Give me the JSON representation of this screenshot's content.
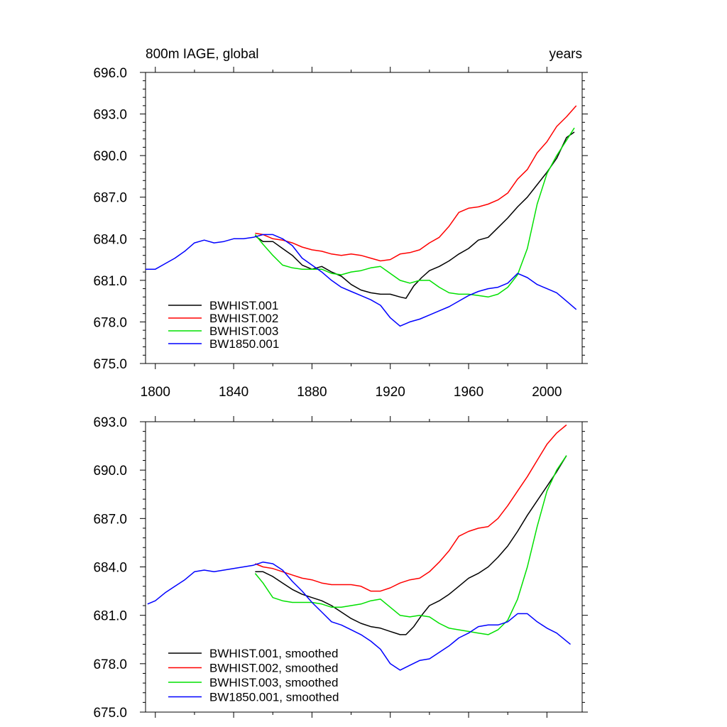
{
  "colors": {
    "BWHIST.001": "#000000",
    "BWHIST.002": "#ff0000",
    "BWHIST.003": "#00e000",
    "BW1850.001": "#0000ff"
  },
  "chart_data": [
    {
      "type": "line",
      "title_left": "800m IAGE, global",
      "title_right": "years",
      "xlim": [
        1795,
        2018
      ],
      "ylim": [
        675.0,
        696.0
      ],
      "x_ticks": [
        1800,
        1840,
        1880,
        1920,
        1960,
        2000
      ],
      "x_tick_labels": [
        "1800",
        "1840",
        "1880",
        "1920",
        "1960",
        "2000"
      ],
      "y_ticks": [
        675,
        678,
        681,
        684,
        687,
        690,
        693,
        696
      ],
      "y_tick_labels": [
        "675.0",
        "678.0",
        "681.0",
        "684.0",
        "687.0",
        "690.0",
        "693.0",
        "696.0"
      ],
      "legend_position": "lower-left",
      "series": [
        {
          "name": "BWHIST.001",
          "color_key": "BWHIST.001",
          "x": [
            1851,
            1855,
            1860,
            1865,
            1870,
            1875,
            1880,
            1885,
            1890,
            1895,
            1900,
            1905,
            1910,
            1915,
            1920,
            1925,
            1928,
            1932,
            1936,
            1940,
            1945,
            1950,
            1955,
            1960,
            1965,
            1970,
            1975,
            1980,
            1985,
            1990,
            1995,
            2000,
            2005,
            2010,
            2014
          ],
          "y": [
            684.2,
            683.8,
            683.8,
            683.3,
            682.8,
            682.1,
            681.8,
            682.0,
            681.6,
            681.3,
            680.7,
            680.3,
            680.1,
            680.0,
            680.0,
            679.8,
            679.7,
            680.6,
            681.2,
            681.7,
            682.0,
            682.4,
            682.9,
            683.3,
            683.9,
            684.1,
            684.8,
            685.5,
            686.3,
            687.0,
            687.9,
            688.8,
            689.8,
            691.3,
            691.7
          ]
        },
        {
          "name": "BWHIST.002",
          "color_key": "BWHIST.002",
          "x": [
            1851,
            1855,
            1860,
            1865,
            1870,
            1875,
            1880,
            1885,
            1890,
            1895,
            1900,
            1905,
            1910,
            1915,
            1920,
            1925,
            1930,
            1935,
            1940,
            1945,
            1950,
            1955,
            1960,
            1965,
            1970,
            1975,
            1980,
            1985,
            1990,
            1995,
            2000,
            2005,
            2010,
            2015
          ],
          "y": [
            684.4,
            684.3,
            684.0,
            683.9,
            683.7,
            683.4,
            683.2,
            683.1,
            682.9,
            682.8,
            682.9,
            682.8,
            682.6,
            682.4,
            682.5,
            682.9,
            683.0,
            683.2,
            683.7,
            684.1,
            684.9,
            685.9,
            686.2,
            686.3,
            686.5,
            686.8,
            687.3,
            688.3,
            689.0,
            690.2,
            691.0,
            692.1,
            692.8,
            693.6
          ]
        },
        {
          "name": "BWHIST.003",
          "color_key": "BWHIST.003",
          "x": [
            1851,
            1855,
            1860,
            1865,
            1870,
            1875,
            1880,
            1885,
            1890,
            1895,
            1900,
            1905,
            1910,
            1915,
            1920,
            1925,
            1930,
            1935,
            1940,
            1945,
            1950,
            1955,
            1960,
            1965,
            1970,
            1975,
            1980,
            1985,
            1990,
            1995,
            2000,
            2005,
            2010,
            2014
          ],
          "y": [
            684.3,
            683.6,
            682.8,
            682.1,
            681.9,
            681.8,
            681.8,
            681.8,
            681.5,
            681.4,
            681.6,
            681.7,
            681.9,
            682.0,
            681.5,
            681.0,
            680.8,
            681.0,
            681.0,
            680.5,
            680.1,
            680.0,
            680.0,
            679.9,
            679.8,
            680.0,
            680.5,
            681.4,
            683.3,
            686.5,
            688.7,
            690.0,
            691.1,
            692.0
          ]
        },
        {
          "name": "BW1850.001",
          "color_key": "BW1850.001",
          "x": [
            1795,
            1800,
            1805,
            1810,
            1815,
            1820,
            1825,
            1830,
            1835,
            1840,
            1845,
            1850,
            1855,
            1860,
            1865,
            1870,
            1875,
            1880,
            1885,
            1890,
            1895,
            1900,
            1905,
            1910,
            1915,
            1920,
            1925,
            1930,
            1935,
            1940,
            1945,
            1950,
            1955,
            1960,
            1965,
            1970,
            1975,
            1980,
            1985,
            1990,
            1995,
            2000,
            2005,
            2010,
            2015
          ],
          "y": [
            681.8,
            681.8,
            682.2,
            682.6,
            683.1,
            683.7,
            683.9,
            683.7,
            683.8,
            684.0,
            684.0,
            684.1,
            684.3,
            684.3,
            684.0,
            683.5,
            682.6,
            682.1,
            681.6,
            681.0,
            680.5,
            680.2,
            679.9,
            679.6,
            679.2,
            678.3,
            677.7,
            678.0,
            678.2,
            678.5,
            678.8,
            679.1,
            679.5,
            679.9,
            680.2,
            680.4,
            680.5,
            680.8,
            681.5,
            681.2,
            680.7,
            680.4,
            680.1,
            679.5,
            678.9
          ]
        }
      ]
    },
    {
      "type": "line",
      "xlim": [
        1795,
        2018
      ],
      "ylim": [
        675.0,
        693.0
      ],
      "x_ticks": [
        1800,
        1840,
        1880,
        1920,
        1960,
        2000
      ],
      "y_ticks": [
        675,
        678,
        681,
        684,
        687,
        690,
        693
      ],
      "y_tick_labels": [
        "675.0",
        "678.0",
        "681.0",
        "684.0",
        "687.0",
        "690.0",
        "693.0"
      ],
      "legend_position": "lower-left",
      "series": [
        {
          "name": "BWHIST.001, smoothed",
          "color_key": "BWHIST.001",
          "x": [
            1851,
            1855,
            1860,
            1865,
            1870,
            1875,
            1880,
            1885,
            1890,
            1895,
            1900,
            1905,
            1910,
            1915,
            1920,
            1925,
            1928,
            1932,
            1936,
            1940,
            1945,
            1950,
            1955,
            1960,
            1965,
            1970,
            1975,
            1980,
            1985,
            1990,
            1995,
            2000,
            2005,
            2010
          ],
          "y": [
            683.7,
            683.7,
            683.4,
            683.0,
            682.6,
            682.3,
            682.1,
            681.9,
            681.6,
            681.2,
            680.8,
            680.5,
            680.3,
            680.2,
            680.0,
            679.8,
            679.8,
            680.3,
            681.0,
            681.6,
            681.9,
            682.3,
            682.8,
            683.3,
            683.6,
            684.0,
            684.6,
            685.3,
            686.2,
            687.2,
            688.1,
            689.0,
            689.9,
            690.9
          ]
        },
        {
          "name": "BWHIST.002, smoothed",
          "color_key": "BWHIST.002",
          "x": [
            1851,
            1855,
            1860,
            1865,
            1870,
            1875,
            1880,
            1885,
            1890,
            1895,
            1900,
            1905,
            1910,
            1915,
            1920,
            1925,
            1930,
            1935,
            1940,
            1945,
            1950,
            1955,
            1960,
            1965,
            1970,
            1975,
            1980,
            1985,
            1990,
            1995,
            2000,
            2005,
            2010
          ],
          "y": [
            684.2,
            684.0,
            683.9,
            683.7,
            683.5,
            683.3,
            683.2,
            683.0,
            682.9,
            682.9,
            682.9,
            682.8,
            682.5,
            682.5,
            682.7,
            683.0,
            683.2,
            683.3,
            683.7,
            684.3,
            685.0,
            685.9,
            686.2,
            686.4,
            686.5,
            687.0,
            687.8,
            688.7,
            689.6,
            690.6,
            691.6,
            692.3,
            692.8
          ]
        },
        {
          "name": "BWHIST.003, smoothed",
          "color_key": "BWHIST.003",
          "x": [
            1851,
            1855,
            1860,
            1865,
            1870,
            1875,
            1880,
            1885,
            1890,
            1895,
            1900,
            1905,
            1910,
            1915,
            1920,
            1925,
            1930,
            1935,
            1940,
            1945,
            1950,
            1955,
            1960,
            1965,
            1970,
            1975,
            1980,
            1985,
            1990,
            1995,
            2000,
            2005,
            2010
          ],
          "y": [
            683.6,
            683.0,
            682.1,
            681.9,
            681.8,
            681.8,
            681.8,
            681.7,
            681.5,
            681.5,
            681.6,
            681.7,
            681.9,
            682.0,
            681.5,
            681.0,
            680.9,
            681.0,
            680.9,
            680.5,
            680.2,
            680.1,
            680.0,
            679.9,
            679.8,
            680.1,
            680.7,
            682.0,
            684.0,
            686.5,
            688.7,
            690.0,
            690.9
          ]
        },
        {
          "name": "BW1850.001, smoothed",
          "color_key": "BW1850.001",
          "x": [
            1796,
            1800,
            1805,
            1810,
            1815,
            1820,
            1825,
            1830,
            1835,
            1840,
            1845,
            1850,
            1855,
            1860,
            1865,
            1870,
            1875,
            1880,
            1885,
            1890,
            1895,
            1900,
            1905,
            1910,
            1915,
            1920,
            1925,
            1930,
            1935,
            1940,
            1945,
            1950,
            1955,
            1960,
            1965,
            1970,
            1975,
            1980,
            1985,
            1990,
            1995,
            2000,
            2005,
            2012
          ],
          "y": [
            681.7,
            681.9,
            682.4,
            682.8,
            683.2,
            683.7,
            683.8,
            683.7,
            683.8,
            683.9,
            684.0,
            684.1,
            684.3,
            684.2,
            683.8,
            683.1,
            682.5,
            681.8,
            681.2,
            680.6,
            680.4,
            680.1,
            679.8,
            679.4,
            678.9,
            678.0,
            677.6,
            677.9,
            678.2,
            678.3,
            678.7,
            679.1,
            679.6,
            679.9,
            680.3,
            680.4,
            680.4,
            680.6,
            681.1,
            681.1,
            680.6,
            680.2,
            679.9,
            679.2
          ]
        }
      ]
    }
  ]
}
